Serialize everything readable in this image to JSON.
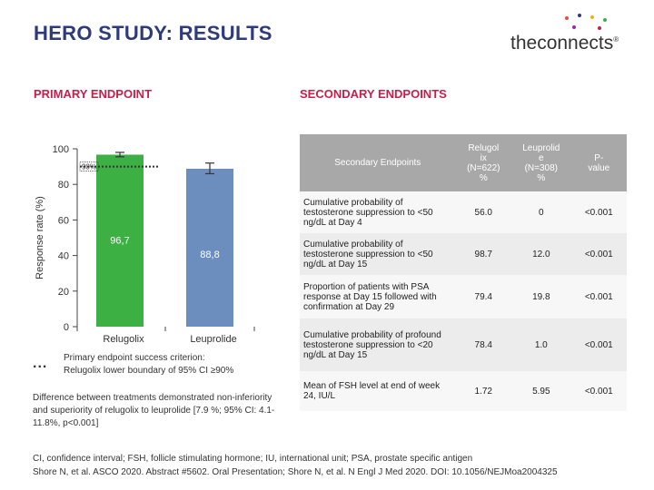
{
  "title": "HERO STUDY: RESULTS",
  "logo": {
    "text_light": "the",
    "text_bold": "connects",
    "mark": "®"
  },
  "primary": {
    "heading": "PRIMARY ENDPOINT",
    "legend_marker": "...",
    "legend_line1": "Primary endpoint success criterion:",
    "legend_line2": "Relugolix lower boundary of 95% CI ≥90%",
    "difference_note": "Difference between treatments demonstrated non-inferiority and superiority of relugolix to leuprolide [7.9 %; 95% CI: 4.1-11.8%, p<0.001]"
  },
  "secondary": {
    "heading": "SECONDARY ENDPOINTS",
    "columns": [
      "Secondary Endpoints",
      "Relugolix (N=622) %",
      "Leuprolide (N=308) %",
      "P-value"
    ],
    "header_display": [
      "Secondary Endpoints",
      "Relugol\nix\n(N=622)\n%",
      "Leuprolid\ne\n(N=308)\n%",
      "P-\nvalue"
    ],
    "rows": [
      {
        "endpoint": "Cumulative probability of testosterone suppression to <50 ng/dL at Day 4",
        "relugolix": "56.0",
        "leuprolide": "0",
        "p": "<0.001"
      },
      {
        "endpoint": "Cumulative probability of testosterone suppression to <50 ng/dL at Day 15",
        "relugolix": "98.7",
        "leuprolide": "12.0",
        "p": "<0.001"
      },
      {
        "endpoint": "Proportion of patients with PSA response at Day 15 followed with confirmation at Day 29",
        "relugolix": "79.4",
        "leuprolide": "19.8",
        "p": "<0.001"
      },
      {
        "endpoint": "Cumulative probability of profound testosterone suppression to <20 ng/dL at Day 15",
        "relugolix": "78.4",
        "leuprolide": "1.0",
        "p": "<0.001"
      },
      {
        "endpoint": "Mean of FSH level at end of week 24, IU/L",
        "relugolix": "1.72",
        "leuprolide": "5.95",
        "p": "<0.001"
      }
    ]
  },
  "footnote": {
    "abbreviations": "CI, confidence interval; FSH, follicle stimulating hormone; IU, international unit; PSA, prostate specific antigen",
    "references": "Shore N, et al. ASCO 2020. Abstract #5602. Oral Presentation; Shore N, et al. N Engl J Med 2020. DOI: 10.1056/NEJMoa2004325"
  },
  "chart_data": {
    "type": "bar",
    "title": "",
    "xlabel": "",
    "ylabel": "Response rate (%)",
    "ylim": [
      0,
      100
    ],
    "yticks": [
      0,
      20,
      40,
      60,
      80,
      100
    ],
    "categories": [
      "Relugolix",
      "Leuprolide"
    ],
    "values": [
      96.7,
      88.8
    ],
    "value_labels": [
      "96,7",
      "88,8"
    ],
    "ci_upper": [
      98.0,
      92.0
    ],
    "ci_lower": [
      95.5,
      86.0
    ],
    "colors": [
      "#3cb043",
      "#6c8ebf"
    ],
    "threshold": {
      "value": 90,
      "label": "90%"
    }
  }
}
